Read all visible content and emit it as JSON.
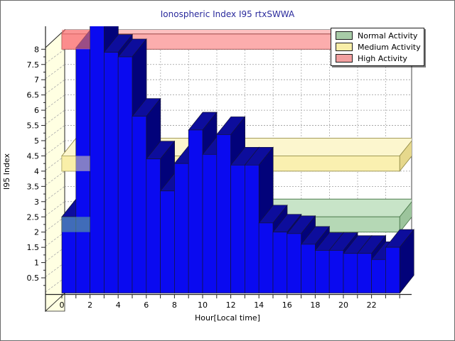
{
  "title": {
    "text": "Ionospheric Index I95 rtxSWWA",
    "color": "#2A2A9C"
  },
  "legend": {
    "items": [
      {
        "label": "Normal Activity",
        "color": "#A8CCA8"
      },
      {
        "label": "Medium Activity",
        "color": "#F8EEA8"
      },
      {
        "label": "High Activity",
        "color": "#F2A0A0"
      }
    ]
  },
  "chart_data": {
    "type": "bar",
    "title": "Ionospheric Index I95 rtxSWWA",
    "xlabel": "Hour[Local time]",
    "ylabel": "I95 Index",
    "x": [
      0,
      1,
      2,
      3,
      4,
      5,
      6,
      7,
      8,
      9,
      10,
      11,
      12,
      13,
      14,
      15,
      16,
      17,
      18,
      19,
      20,
      21,
      22,
      23
    ],
    "values": [
      2.5,
      8.05,
      9,
      7.9,
      7.75,
      5.8,
      4.4,
      3.35,
      4.25,
      5.35,
      4.55,
      5.2,
      4.2,
      4.2,
      2.3,
      2.0,
      1.95,
      1.6,
      1.4,
      1.4,
      1.3,
      1.3,
      1.1,
      1.5
    ],
    "clipped_bars": [
      2
    ],
    "clip_note": "Bar for hour 2 exceeds the plotted range and is drawn cut off at the top of the plot",
    "ylim": [
      0,
      8.5
    ],
    "yticks": [
      0.5,
      1,
      1.5,
      2,
      2.5,
      3,
      3.5,
      4,
      4.5,
      5,
      5.5,
      6,
      6.5,
      7,
      7.5,
      8
    ],
    "xticks_labeled": [
      0,
      2,
      4,
      6,
      8,
      10,
      12,
      14,
      16,
      18,
      20,
      22
    ],
    "grid": true,
    "legend_position": "top-right",
    "bands": [
      {
        "name": "Normal Activity",
        "from": 2,
        "to": 2.5,
        "front": "#B5D8B5",
        "top": "#C8E4C8",
        "side": "#9CC49C",
        "stroke": "#4F7D4F",
        "tint": "rgba(110,190,140,0.55)"
      },
      {
        "name": "Medium Activity",
        "from": 4,
        "to": 4.5,
        "front": "#FAF0B0",
        "top": "#FCF6CE",
        "side": "#E6D88C",
        "stroke": "#97904D",
        "tint": "rgba(248,238,160,0.5)"
      },
      {
        "name": "High Activity",
        "from": 8,
        "to": 8.5,
        "front": "#FCADAD",
        "top": "#FDC0C0",
        "side": "#E89090",
        "stroke": "#9B4848",
        "tint": "rgba(250,120,120,0.6)"
      }
    ],
    "colors": {
      "bar_front": "#0A0AF0",
      "bar_top": "#0D0D9C",
      "bar_side": "#02027A",
      "bar_stroke": "#151538",
      "wall": "#FFFFE2",
      "backwall": "#FFFFFF",
      "grid": "#9A9A9A",
      "axis": "#222222"
    }
  }
}
